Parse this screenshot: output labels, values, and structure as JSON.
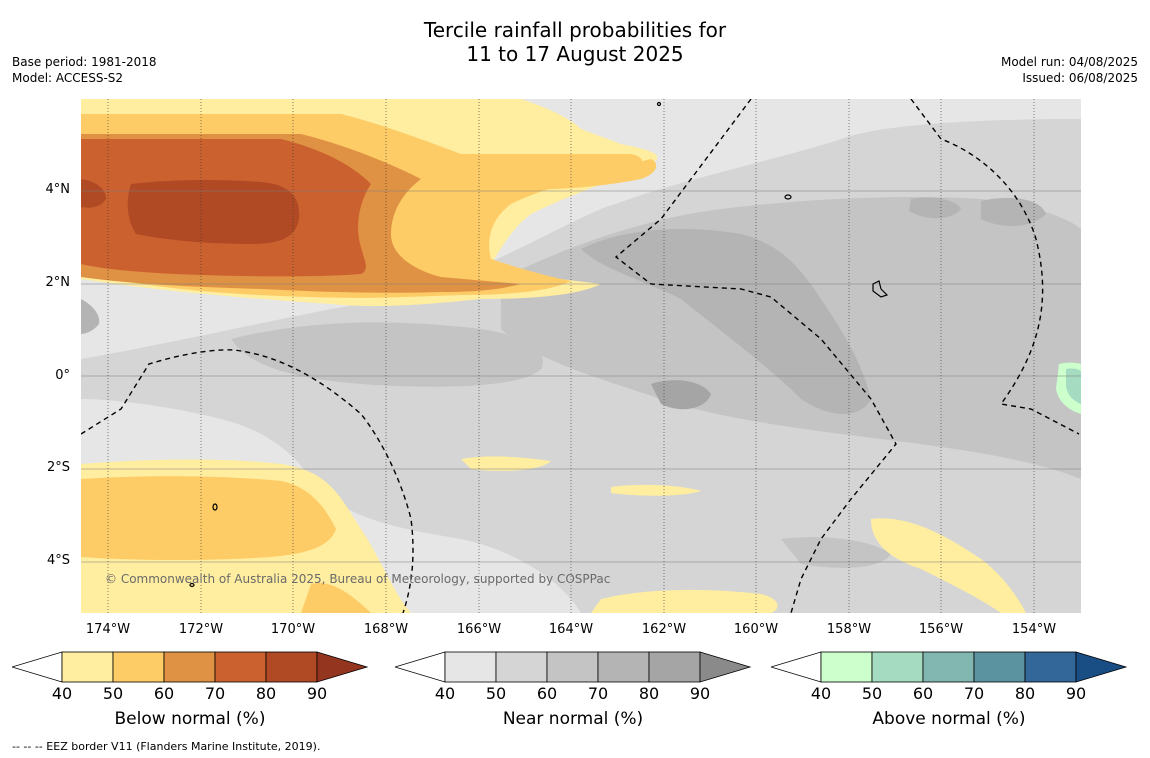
{
  "title_line1": "Tercile rainfall probabilities for",
  "title_line2": "11 to 17 August 2025",
  "meta_left": {
    "base_period": "Base period: 1981-2018",
    "model": "Model: ACCESS-S2"
  },
  "meta_right": {
    "model_run": "Model run: 04/08/2025",
    "issued": "Issued: 06/08/2025"
  },
  "lat_labels": [
    "4°N",
    "2°N",
    "0°",
    "2°S",
    "4°S"
  ],
  "lon_labels": [
    "174°W",
    "172°W",
    "170°W",
    "168°W",
    "166°W",
    "164°W",
    "162°W",
    "160°W",
    "158°W",
    "156°W",
    "154°W"
  ],
  "copyright": "© Commonwealth of Australia 2025, Bureau of Meteorology, supported by COSPPac",
  "colorbars": [
    {
      "label": "Below normal (%)",
      "ticks": [
        "40",
        "50",
        "60",
        "70",
        "80",
        "90"
      ],
      "colors": [
        "#ffffff",
        "#ffeda0",
        "#fecc66",
        "#e09244",
        "#cc6130",
        "#b04a24",
        "#943520"
      ]
    },
    {
      "label": "Near normal (%)",
      "ticks": [
        "40",
        "50",
        "60",
        "70",
        "80",
        "90"
      ],
      "colors": [
        "#ffffff",
        "#e6e6e6",
        "#d5d5d5",
        "#c4c4c4",
        "#b4b4b4",
        "#a5a5a5",
        "#8a8a8a"
      ]
    },
    {
      "label": "Above normal (%)",
      "ticks": [
        "40",
        "50",
        "60",
        "70",
        "80",
        "90"
      ],
      "colors": [
        "#ffffff",
        "#ccffcc",
        "#a5dbc1",
        "#82b6b0",
        "#5b93a0",
        "#336699",
        "#194e84"
      ]
    }
  ],
  "footnote": "--  --  -- EEZ border V11 (Flanders Marine Institute, 2019)."
}
